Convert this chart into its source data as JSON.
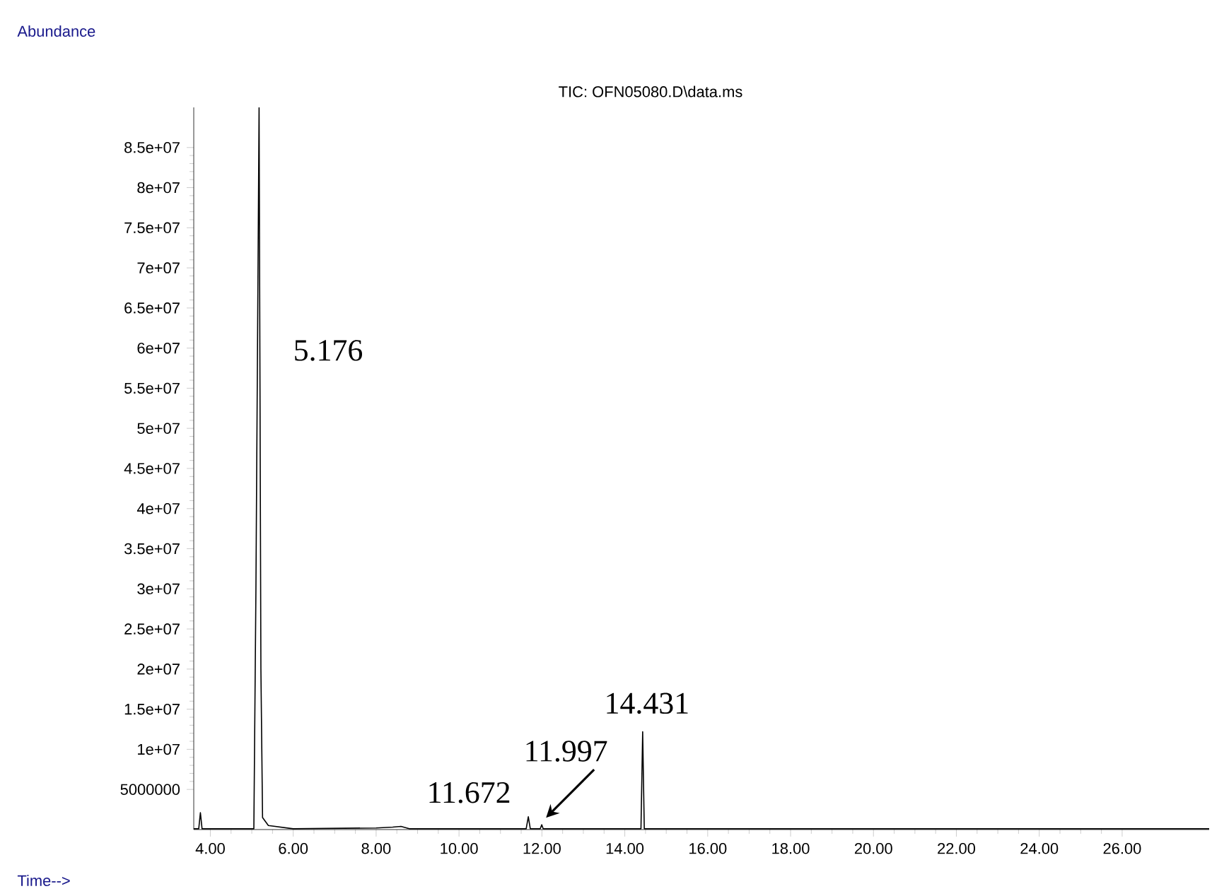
{
  "chart_data": {
    "type": "line",
    "title": "TIC: OFN05080.D\\data.ms",
    "xlabel": "Time-->",
    "ylabel": "Abundance",
    "x": [
      3.6,
      3.72,
      3.76,
      3.8,
      5.05,
      5.1,
      5.176,
      5.22,
      5.26,
      5.4,
      6.0,
      8.0,
      8.4,
      8.6,
      8.8,
      11.62,
      11.672,
      11.72,
      11.96,
      11.997,
      12.03,
      14.39,
      14.431,
      14.47,
      28.1
    ],
    "series": [
      {
        "color": "#000000",
        "values": [
          100000,
          100000,
          2100000,
          100000,
          100000,
          30000000,
          90000000,
          20000000,
          1500000,
          500000,
          100000,
          200000,
          300000,
          400000,
          100000,
          100000,
          1600000,
          100000,
          100000,
          600000,
          100000,
          100000,
          12200000,
          100000,
          100000
        ]
      }
    ],
    "xlim": [
      3.6,
      28.1
    ],
    "ylim": [
      0,
      90000000
    ],
    "xticks": [
      {
        "value": 4,
        "label": "4.00"
      },
      {
        "value": 6,
        "label": "6.00"
      },
      {
        "value": 8,
        "label": "8.00"
      },
      {
        "value": 10,
        "label": "10.00"
      },
      {
        "value": 12,
        "label": "12.00"
      },
      {
        "value": 14,
        "label": "14.00"
      },
      {
        "value": 16,
        "label": "16.00"
      },
      {
        "value": 18,
        "label": "18.00"
      },
      {
        "value": 20,
        "label": "20.00"
      },
      {
        "value": 22,
        "label": "22.00"
      },
      {
        "value": 24,
        "label": "24.00"
      },
      {
        "value": 26,
        "label": "26.00"
      }
    ],
    "yticks": [
      5000000,
      {
        "value": 10000000,
        "label": "1e+07"
      },
      {
        "value": 15000000,
        "label": "1.5e+07"
      },
      {
        "value": 20000000,
        "label": "2e+07"
      },
      {
        "value": 25000000,
        "label": "2.5e+07"
      },
      {
        "value": 30000000,
        "label": "3e+07"
      },
      {
        "value": 35000000,
        "label": "3.5e+07"
      },
      {
        "value": 40000000,
        "label": "4e+07"
      },
      {
        "value": 45000000,
        "label": "4.5e+07"
      },
      {
        "value": 50000000,
        "label": "5e+07"
      },
      {
        "value": 55000000,
        "label": "5.5e+07"
      },
      {
        "value": 60000000,
        "label": "6e+07"
      },
      {
        "value": 65000000,
        "label": "6.5e+07"
      },
      {
        "value": 70000000,
        "label": "7e+07"
      },
      {
        "value": 75000000,
        "label": "7.5e+07"
      },
      {
        "value": 80000000,
        "label": "8e+07"
      },
      {
        "value": 85000000,
        "label": "8.5e+07"
      }
    ],
    "annotations": [
      "5.176",
      {
        "text": "11.672",
        "x": 11.672,
        "y": 1600000
      },
      {
        "text": "11.997",
        "x": 11.997,
        "y": 600000
      },
      {
        "text": "14.431",
        "x": 14.431,
        "y": 12200000
      }
    ],
    "grid": false,
    "legend": false,
    "marker": "none",
    "line_style": "solid"
  }
}
